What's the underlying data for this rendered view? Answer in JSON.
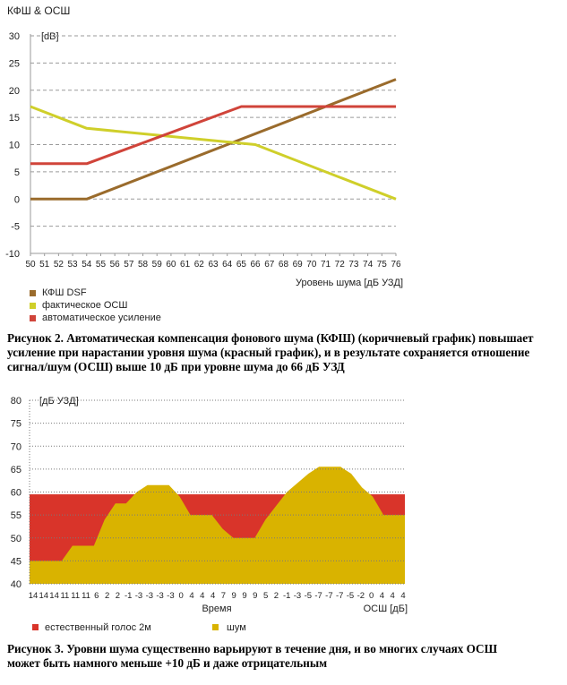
{
  "chart_data": [
    {
      "type": "line",
      "title": "КФШ & ОСШ",
      "yunit": "[dB]",
      "xlabel": "Уровень шума [дБ УЗД]",
      "x_ticks": [
        "50",
        "51",
        "52",
        "53",
        "54",
        "55",
        "56",
        "57",
        "58",
        "59",
        "60",
        "61",
        "62",
        "63",
        "64",
        "65",
        "66",
        "67",
        "68",
        "69",
        "70",
        "71",
        "72",
        "73",
        "74",
        "75",
        "76"
      ],
      "ylim": [
        -10,
        30
      ],
      "y_ticks": [
        "30",
        "25",
        "20",
        "15",
        "10",
        "5",
        "0",
        "-5",
        "-10"
      ],
      "grid": "dashed-horizontal",
      "legend_position": "bottom-left",
      "series": [
        {
          "name": "КФШ DSF",
          "color": "#9a6b2c",
          "x": [
            50,
            54,
            76
          ],
          "y": [
            0,
            0,
            22
          ]
        },
        {
          "name": "фактическое ОСШ",
          "color": "#cfcf2a",
          "x": [
            50,
            54,
            66,
            76
          ],
          "y": [
            17,
            13,
            10,
            0
          ]
        },
        {
          "name": "автоматическое усиление",
          "color": "#d0443a",
          "x": [
            50,
            54,
            65,
            76
          ],
          "y": [
            6.5,
            6.5,
            17,
            17
          ]
        }
      ],
      "caption": "Рисунок 2. Автоматическая компенсация фонового шума (КФШ) (коричневый график) повышает усиление при нарастании уровня шума (красный график), и в результате сохраняется отношение сигнал/шум (ОСШ) выше 10 дБ при уровне шума до 66 дБ УЗД"
    },
    {
      "type": "area",
      "yunit": "[дБ УЗД]",
      "xlabel": "Время",
      "xunit_label": "ОСШ [дБ]",
      "x_ticks": [
        "14",
        "14",
        "14",
        "11",
        "11",
        "11",
        "6",
        "2",
        "2",
        "-1",
        "-3",
        "-3",
        "-3",
        "-3",
        "0",
        "4",
        "4",
        "4",
        "7",
        "9",
        "9",
        "9",
        "5",
        "2",
        "-1",
        "-3",
        "-5",
        "-7",
        "-7",
        "-7",
        "-5",
        "-2",
        "0",
        "4",
        "4",
        "4"
      ],
      "ylim": [
        40,
        80
      ],
      "y_ticks": [
        "80",
        "75",
        "70",
        "65",
        "60",
        "55",
        "50",
        "45",
        "40"
      ],
      "grid": "dotted-horizontal",
      "legend_position": "bottom-left",
      "band": {
        "name": "естественный голос 2м",
        "color": "#d9342a",
        "from": 40,
        "to": 59.5
      },
      "series": [
        {
          "name": "шум",
          "color": "#d9b300",
          "x": [
            0,
            3,
            4,
            6,
            7,
            8,
            9,
            10,
            11,
            12,
            13,
            14,
            15,
            16,
            17,
            18,
            19,
            20,
            21,
            22,
            23,
            24,
            25,
            26,
            27,
            28,
            29,
            30,
            31,
            32,
            33,
            34,
            35
          ],
          "y": [
            45,
            45,
            48.3,
            48.3,
            54,
            57.5,
            57.5,
            60,
            61.5,
            61.5,
            61.5,
            59,
            55,
            55,
            55,
            52,
            50,
            50,
            50,
            54,
            57,
            60,
            62,
            64,
            65.5,
            65.5,
            65.5,
            64,
            61,
            59,
            55,
            55,
            55
          ]
        }
      ],
      "caption": "Рисунок 3. Уровни шума существенно варьируют в течение дня, и во многих случаях ОСШ может быть намного меньше +10 дБ и даже отрицательным"
    }
  ]
}
